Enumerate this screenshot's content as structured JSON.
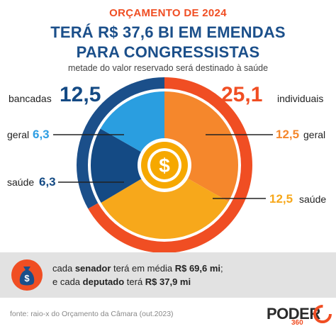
{
  "header": {
    "kicker": "ORÇAMENTO DE 2024",
    "title_line1": "TERÁ R$ 37,6 BI EM EMENDAS",
    "title_line2": "PARA CONGRESSISTAS",
    "subtitle": "metade do valor reservado será destinado à saúde"
  },
  "chart_data": {
    "type": "pie",
    "unit": "R$ bi",
    "total": 37.6,
    "outer_ring": [
      {
        "name": "bancadas",
        "label": "bancadas",
        "value": 12.5,
        "display": "12,5"
      },
      {
        "name": "individuais",
        "label": "individuais",
        "value": 25.1,
        "display": "25,1"
      }
    ],
    "inner_slices": [
      {
        "name": "bancadas geral",
        "label": "geral",
        "value": 6.3,
        "display": "6,3"
      },
      {
        "name": "bancadas saúde",
        "label": "saúde",
        "value": 6.3,
        "display": "6,3"
      },
      {
        "name": "individuais geral",
        "label": "geral",
        "value": 12.5,
        "display": "12,5"
      },
      {
        "name": "individuais saúde",
        "label": "saúde",
        "value": 12.5,
        "display": "12,5"
      }
    ]
  },
  "colors": {
    "navy": "#1b4f8a",
    "blue_dark": "#144a84",
    "blue_light": "#2a9ee0",
    "blue_bright": "#2d9ee3",
    "orange_red": "#f04e23",
    "orange": "#f5872c",
    "orange_yellow": "#f7a81b",
    "gold": "#f6a800",
    "coin": "#f6a800",
    "coin_inner": "#ffffff"
  },
  "info": {
    "line1_prefix": "cada ",
    "line1_bold": "senador",
    "line1_middle": " terá em média ",
    "line1_value": "R$ 69,6 mi",
    "line1_suffix": ";",
    "line2_prefix": "e cada ",
    "line2_bold": "deputado",
    "line2_middle": " terá ",
    "line2_value": "R$ 37,9 mi",
    "bag_symbol": "$"
  },
  "footer": {
    "source": "fonte: raio-x do Orçamento da Câmara (out.2023)"
  },
  "logo": {
    "name": "PODER",
    "sub": "360"
  },
  "coin_symbol": "$"
}
